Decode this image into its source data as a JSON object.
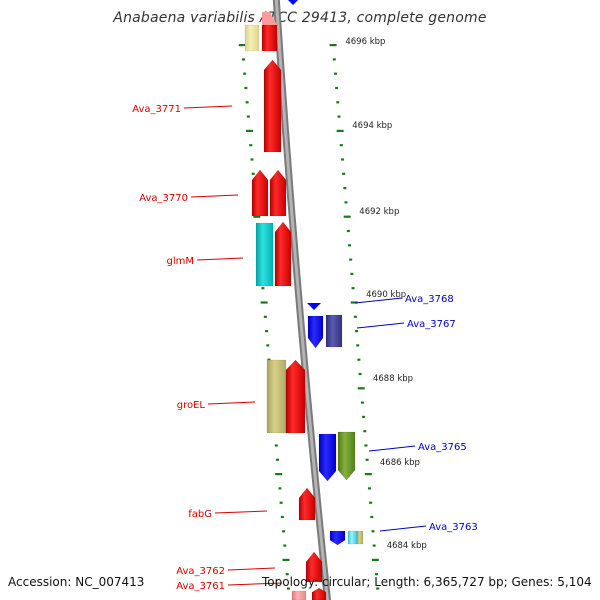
{
  "title": "Anabaena variabilis ATCC 29413, complete genome",
  "footer": {
    "accession": "Accession: NC_007413",
    "summary": "Topology: circular; Length: 6,365,727 bp; Genes: 5,104"
  },
  "colors": {
    "plus_strand_label": "#dd0000",
    "minus_strand_label": "#0000cc",
    "backbone": "#888888",
    "tick": "#1a7a1a"
  },
  "ruler": {
    "unit": "kbp",
    "labels": [
      {
        "kbp": 4696,
        "text": "4696 kbp"
      },
      {
        "kbp": 4694,
        "text": "4694 kbp"
      },
      {
        "kbp": 4692,
        "text": "4692 kbp"
      },
      {
        "kbp": 4690,
        "text": "4690 kbp"
      },
      {
        "kbp": 4688,
        "text": "4688 kbp"
      },
      {
        "kbp": 4686,
        "text": "4686 kbp"
      },
      {
        "kbp": 4684,
        "text": "4684 kbp"
      }
    ]
  },
  "genes": [
    {
      "name": "Ava_3771",
      "strand": "+",
      "color": "#ff0000",
      "label_color": "#dd0000"
    },
    {
      "name": "Ava_3770",
      "strand": "+",
      "color": "#ff0000",
      "label_color": "#dd0000"
    },
    {
      "name": "glmM",
      "strand": "+",
      "color": "#00cccc",
      "label_color": "#dd0000"
    },
    {
      "name": "groEL",
      "strand": "+",
      "color": "#c8c27a",
      "label_color": "#dd0000"
    },
    {
      "name": "fabG",
      "strand": "+",
      "color": "#ff0000",
      "label_color": "#dd0000"
    },
    {
      "name": "Ava_3762",
      "strand": "+",
      "color": "#ff0000",
      "label_color": "#dd0000"
    },
    {
      "name": "Ava_3761",
      "strand": "+",
      "color": "#ff0000",
      "label_color": "#dd0000"
    },
    {
      "name": "Ava_3768",
      "strand": "-",
      "color": "#0000ff",
      "label_color": "#0000cc"
    },
    {
      "name": "Ava_3767",
      "strand": "-",
      "color": "#0000ff",
      "label_color": "#0000cc"
    },
    {
      "name": "Ava_3765",
      "strand": "-",
      "color": "#0000ff",
      "label_color": "#0000cc"
    },
    {
      "name": "Ava_3763",
      "strand": "-",
      "color": "#0000ff",
      "label_color": "#0000cc"
    }
  ]
}
